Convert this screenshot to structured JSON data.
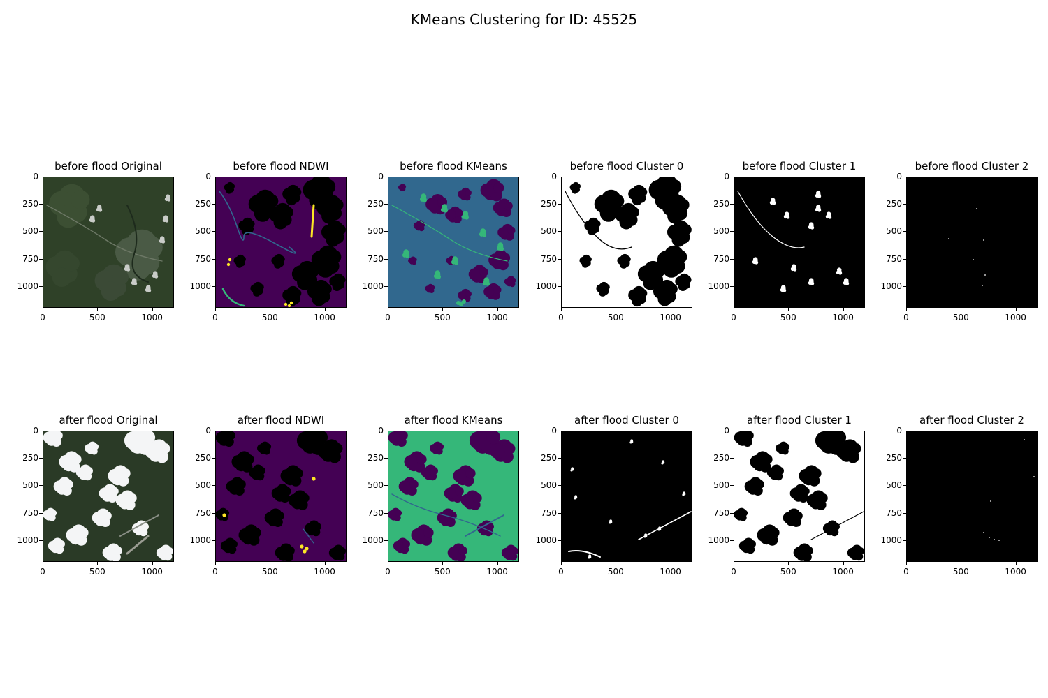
{
  "figure": {
    "title": "KMeans Clustering for ID: 45525"
  },
  "axes": {
    "x_ticks": [
      "0",
      "500",
      "1000"
    ],
    "y_ticks": [
      "0",
      "250",
      "500",
      "750",
      "1000"
    ],
    "x_tick_values": [
      0,
      500,
      1000
    ],
    "y_tick_values": [
      0,
      250,
      500,
      750,
      1000
    ],
    "extent": [
      0,
      1200
    ]
  },
  "colors": {
    "viridis_dark": "#440154",
    "viridis_teal": "#31688e",
    "viridis_green": "#35b779",
    "viridis_yellow": "#fde725",
    "mask_on": "#ffffff",
    "mask_off": "#000000"
  },
  "panels": [
    {
      "title": "before flood Original",
      "kind": "rgb-before"
    },
    {
      "title": "before flood NDWI",
      "kind": "ndwi-before"
    },
    {
      "title": "before flood KMeans",
      "kind": "kmeans-before"
    },
    {
      "title": "before flood Cluster 0",
      "kind": "c0-before"
    },
    {
      "title": "before flood Cluster 1",
      "kind": "c1-before"
    },
    {
      "title": "before flood Cluster 2",
      "kind": "c2-before"
    },
    {
      "title": "after flood Original",
      "kind": "rgb-after"
    },
    {
      "title": "after flood NDWI",
      "kind": "ndwi-after"
    },
    {
      "title": "after flood KMeans",
      "kind": "kmeans-after"
    },
    {
      "title": "after flood Cluster 0",
      "kind": "c0-after"
    },
    {
      "title": "after flood Cluster 1",
      "kind": "c1-after"
    },
    {
      "title": "after flood Cluster 2",
      "kind": "c2-after"
    }
  ]
}
